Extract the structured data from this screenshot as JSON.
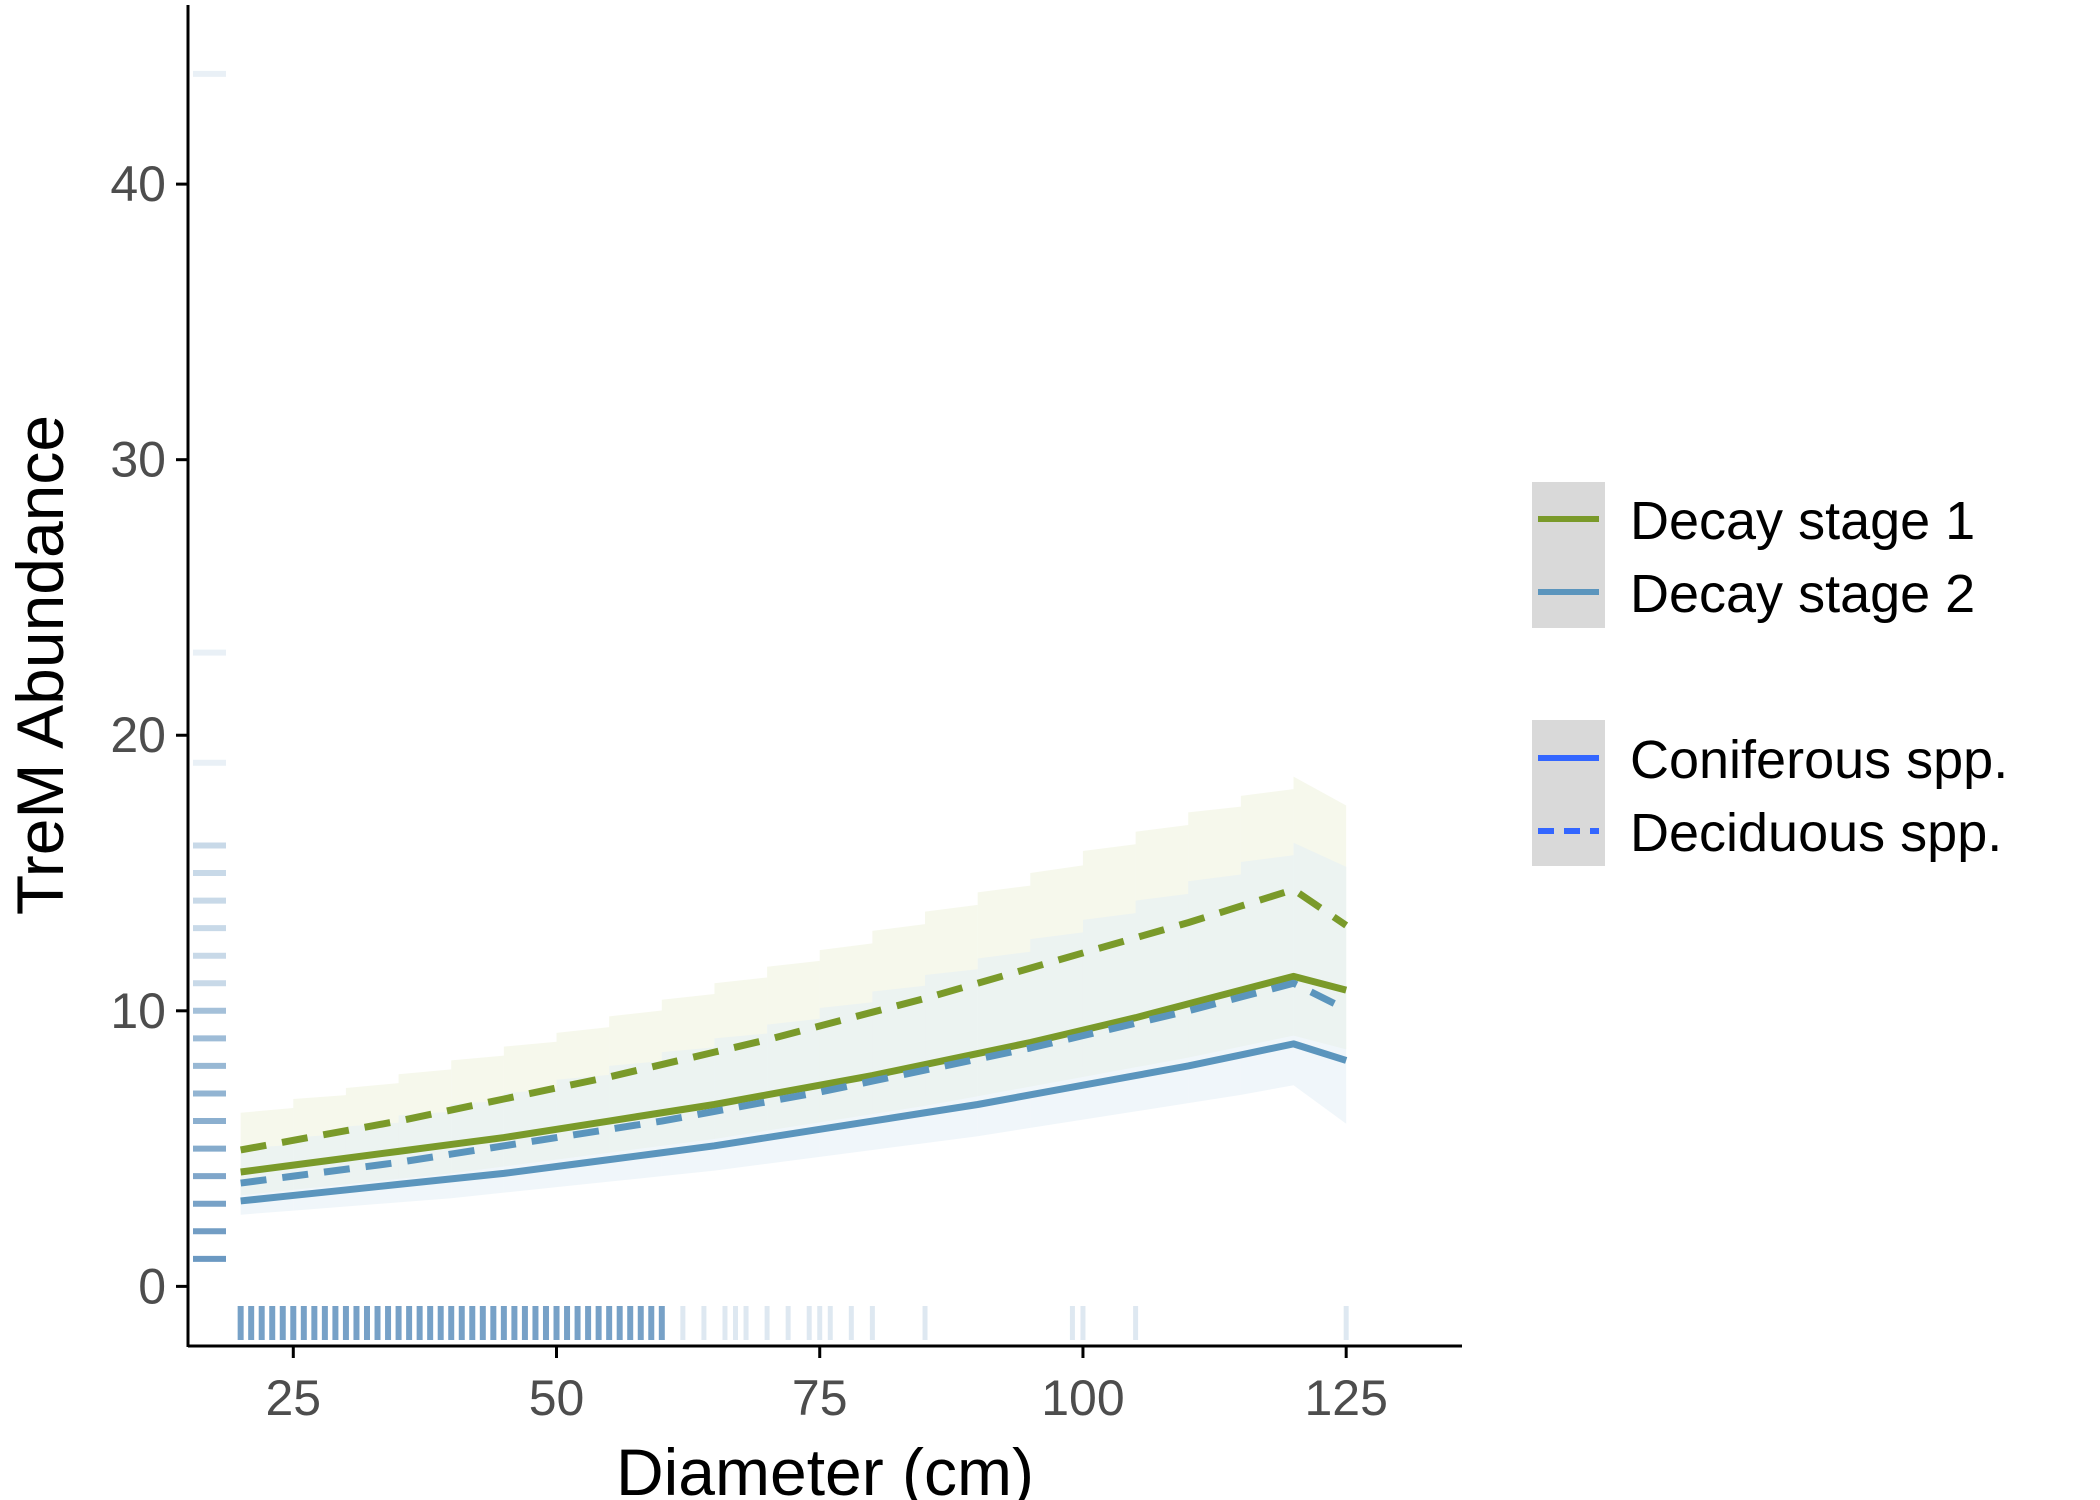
{
  "chart_data": {
    "type": "line",
    "xlabel": "Diameter (cm)",
    "ylabel": "TreM Abundance",
    "xlim": [
      15,
      136
    ],
    "ylim": [
      -2.2,
      46.5
    ],
    "x_ticks": [
      25,
      50,
      75,
      100,
      125
    ],
    "y_ticks": [
      0,
      10,
      20,
      30,
      40
    ],
    "grid": false,
    "legend_position": "right",
    "x": [
      20,
      25,
      30,
      35,
      40,
      45,
      50,
      55,
      60,
      65,
      70,
      75,
      80,
      85,
      90,
      95,
      100,
      105,
      110,
      115,
      120,
      125
    ],
    "series": [
      {
        "name": "Decay stage 1",
        "species_group": "Coniferous spp.",
        "color": "#7a9a2a",
        "dash": "solid",
        "values": [
          4.15,
          4.4,
          4.65,
          4.9,
          5.15,
          5.4,
          5.7,
          6.0,
          6.3,
          6.6,
          6.95,
          7.3,
          7.65,
          8.05,
          8.45,
          8.85,
          9.3,
          9.75,
          10.25,
          10.75,
          11.25,
          10.75
        ]
      },
      {
        "name": "Decay stage 2",
        "species_group": "Coniferous spp.",
        "color": "#5b95bd",
        "dash": "solid",
        "values": [
          3.1,
          3.3,
          3.5,
          3.7,
          3.9,
          4.1,
          4.35,
          4.6,
          4.85,
          5.1,
          5.4,
          5.7,
          6.0,
          6.3,
          6.6,
          6.95,
          7.3,
          7.65,
          8.0,
          8.4,
          8.8,
          8.2
        ]
      },
      {
        "name": "Decay stage 1",
        "species_group": "Deciduous spp.",
        "color": "#7a9a2a",
        "dash": "dashed",
        "values": [
          4.95,
          5.3,
          5.65,
          6.0,
          6.4,
          6.8,
          7.2,
          7.6,
          8.05,
          8.5,
          8.95,
          9.45,
          9.95,
          10.45,
          11.0,
          11.55,
          12.1,
          12.65,
          13.2,
          13.8,
          14.4,
          13.1
        ]
      },
      {
        "name": "Decay stage 2",
        "species_group": "Deciduous spp.",
        "color": "#5b95bd",
        "dash": "dashed",
        "values": [
          3.75,
          4.0,
          4.25,
          4.5,
          4.8,
          5.1,
          5.4,
          5.7,
          6.0,
          6.35,
          6.7,
          7.05,
          7.45,
          7.85,
          8.25,
          8.65,
          9.1,
          9.55,
          10.0,
          10.5,
          11.0,
          10.05
        ]
      }
    ],
    "ribbons": [
      {
        "color": "#eef3dc",
        "lower": [
          3.3,
          3.5,
          3.7,
          3.9,
          4.1,
          4.35,
          4.6,
          4.85,
          5.1,
          5.35,
          5.65,
          5.95,
          6.25,
          6.55,
          6.9,
          7.25,
          7.6,
          7.95,
          8.3,
          8.7,
          9.1,
          8.6
        ],
        "upper": [
          6.3,
          6.8,
          7.2,
          7.7,
          8.2,
          8.7,
          9.2,
          9.8,
          10.4,
          11.0,
          11.6,
          12.2,
          12.9,
          13.6,
          14.3,
          15.0,
          15.8,
          16.5,
          17.2,
          17.8,
          18.5,
          15.5
        ]
      },
      {
        "color": "#e3eef5",
        "lower": [
          2.6,
          2.75,
          2.9,
          3.05,
          3.2,
          3.4,
          3.6,
          3.8,
          4.0,
          4.2,
          4.45,
          4.7,
          4.95,
          5.2,
          5.45,
          5.75,
          6.05,
          6.35,
          6.65,
          6.95,
          7.3,
          5.9
        ],
        "upper": [
          5.0,
          5.4,
          5.8,
          6.2,
          6.6,
          7.0,
          7.5,
          8.0,
          8.5,
          9.0,
          9.5,
          10.1,
          10.7,
          11.3,
          11.9,
          12.6,
          13.3,
          14.0,
          14.7,
          15.4,
          16.1,
          13.6
        ]
      }
    ],
    "rug_x": [
      20,
      21,
      22,
      23,
      24,
      25,
      26,
      27,
      28,
      29,
      30,
      31,
      32,
      33,
      34,
      35,
      36,
      37,
      38,
      39,
      40,
      41,
      42,
      43,
      44,
      45,
      46,
      47,
      48,
      49,
      50,
      51,
      52,
      53,
      54,
      55,
      56,
      57,
      58,
      59,
      60,
      62,
      64,
      66,
      67,
      68,
      70,
      72,
      74,
      75,
      76,
      78,
      80,
      85,
      99,
      100,
      105,
      125
    ],
    "rug_y": [
      1,
      2,
      3,
      4,
      5,
      6,
      7,
      8,
      9,
      10,
      11,
      12,
      13,
      14,
      15,
      16,
      19,
      23,
      44
    ]
  },
  "legend": {
    "decay": [
      {
        "label": "Decay stage 1",
        "color": "#7a9a2a"
      },
      {
        "label": "Decay stage 2",
        "color": "#5b95bd"
      }
    ],
    "species": [
      {
        "label": "Coniferous spp.",
        "color": "#3366ff",
        "dash": "solid"
      },
      {
        "label": "Deciduous spp.",
        "color": "#3366ff",
        "dash": "dashed"
      }
    ],
    "key_background": "#d9d9d9"
  }
}
